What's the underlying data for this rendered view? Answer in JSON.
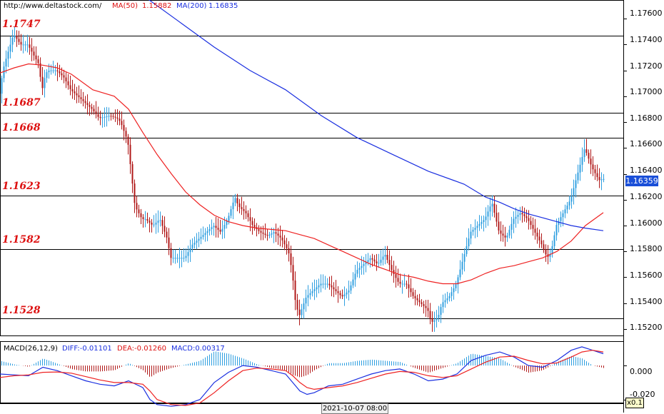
{
  "header": {
    "site": "http://www.deltastock.com/",
    "ma50_label": "MA(50)",
    "ma50_value": "1.15882",
    "ma200_label": "MA(200)",
    "ma200_value": "1.16835"
  },
  "colors": {
    "ma50": "#ee2222",
    "ma200": "#1a2fe0",
    "bull": "#2f9fe0",
    "bear": "#b01818",
    "level_text": "#dd1111"
  },
  "levels": [
    "1.1747",
    "1.1687",
    "1.1668",
    "1.1623",
    "1.1582",
    "1.1528"
  ],
  "yticks": [
    "1.17600",
    "1.17400",
    "1.17200",
    "1.17000",
    "1.16800",
    "1.16600",
    "1.16400",
    "1.16200",
    "1.16000",
    "1.15800",
    "1.15600",
    "1.15400",
    "1.15200"
  ],
  "current_price": "1.16359",
  "macd": {
    "label": "MACD(26,12,9)",
    "diff": "DIFF:-0.01101",
    "dea": "DEA:-0.01260",
    "macd": "MACD:0.00317",
    "ticks": [
      "0.000",
      "-0.020"
    ]
  },
  "time_label": "2021-10-07 08:00",
  "zoom": "x0.1",
  "chart_data": [
    {
      "type": "line",
      "title": "",
      "ylim": [
        1.1515,
        1.177
      ],
      "level_lines": [
        1.1747,
        1.1687,
        1.1668,
        1.1623,
        1.1582,
        1.1528
      ],
      "price_path": {
        "x": [
          0,
          5,
          10,
          20,
          30,
          40,
          55,
          60,
          65,
          70,
          80,
          90,
          100,
          110,
          120,
          130,
          140,
          155,
          165,
          170,
          180,
          185,
          190,
          195,
          200,
          205,
          215,
          225,
          235,
          240,
          250,
          260,
          270,
          280,
          290,
          300,
          310,
          320,
          330,
          335,
          345,
          355,
          365,
          375,
          385,
          395,
          405,
          410,
          415,
          420,
          430,
          440,
          450,
          460,
          470,
          480,
          490,
          500,
          510,
          520,
          530,
          540,
          550,
          560,
          570,
          580,
          590,
          600,
          605,
          610,
          615,
          620,
          630,
          640,
          650,
          660,
          670,
          680,
          690,
          700,
          710,
          720,
          730,
          740,
          750,
          760,
          765,
          770,
          775,
          780,
          790,
          800,
          805,
          810,
          815,
          820,
          830,
          840,
          845
        ],
        "y": [
          1.17,
          1.172,
          1.173,
          1.1748,
          1.174,
          1.174,
          1.1725,
          1.1705,
          1.1718,
          1.172,
          1.172,
          1.1715,
          1.1705,
          1.17,
          1.1695,
          1.169,
          1.1683,
          1.1685,
          1.1683,
          1.168,
          1.1665,
          1.164,
          1.1615,
          1.161,
          1.1605,
          1.1605,
          1.16,
          1.1605,
          1.159,
          1.1575,
          1.1575,
          1.1575,
          1.1585,
          1.159,
          1.1595,
          1.16,
          1.1595,
          1.1605,
          1.1622,
          1.1615,
          1.161,
          1.16,
          1.1595,
          1.1592,
          1.1595,
          1.159,
          1.158,
          1.1565,
          1.154,
          1.153,
          1.1545,
          1.155,
          1.1555,
          1.1555,
          1.155,
          1.1545,
          1.155,
          1.1565,
          1.157,
          1.1575,
          1.157,
          1.1578,
          1.1565,
          1.1555,
          1.1555,
          1.1545,
          1.154,
          1.1535,
          1.1525,
          1.1527,
          1.153,
          1.154,
          1.1545,
          1.1555,
          1.1575,
          1.1595,
          1.16,
          1.1605,
          1.1618,
          1.1595,
          1.159,
          1.1605,
          1.161,
          1.1605,
          1.1595,
          1.1585,
          1.1578,
          1.1575,
          1.1585,
          1.16,
          1.161,
          1.162,
          1.163,
          1.164,
          1.165,
          1.166,
          1.1645,
          1.1635,
          1.1636
        ]
      },
      "series": [
        {
          "name": "MA(50)",
          "x": [
            0,
            20,
            40,
            60,
            80,
            100,
            130,
            160,
            180,
            200,
            220,
            240,
            260,
            280,
            300,
            320,
            340,
            360,
            380,
            400,
            420,
            440,
            460,
            480,
            500,
            520,
            540,
            560,
            580,
            600,
            620,
            640,
            660,
            680,
            700,
            720,
            740,
            760,
            780,
            800,
            820,
            845
          ],
          "y": [
            1.1718,
            1.1722,
            1.1725,
            1.1724,
            1.1722,
            1.1717,
            1.1705,
            1.17,
            1.169,
            1.1672,
            1.1655,
            1.164,
            1.1626,
            1.1616,
            1.1608,
            1.1603,
            1.16,
            1.1598,
            1.1597,
            1.1596,
            1.1593,
            1.159,
            1.1585,
            1.158,
            1.1575,
            1.157,
            1.1566,
            1.1562,
            1.156,
            1.1557,
            1.1555,
            1.1555,
            1.1558,
            1.1563,
            1.1567,
            1.1569,
            1.1572,
            1.1575,
            1.158,
            1.1588,
            1.16,
            1.161
          ]
        },
        {
          "name": "MA(200)",
          "x": [
            200,
            250,
            300,
            350,
            400,
            450,
            500,
            550,
            600,
            650,
            680,
            700,
            720,
            740,
            760,
            780,
            800,
            820,
            845
          ],
          "y": [
            1.1778,
            1.1758,
            1.1738,
            1.172,
            1.1705,
            1.1685,
            1.1668,
            1.1655,
            1.1642,
            1.1632,
            1.1622,
            1.1618,
            1.1613,
            1.1609,
            1.1606,
            1.1603,
            1.16,
            1.1598,
            1.1596
          ]
        }
      ]
    },
    {
      "type": "line",
      "title": "MACD(26,12,9)",
      "ylim": [
        -0.0235,
        0.0135
      ],
      "series": [
        {
          "name": "DIFF",
          "x": [
            0,
            20,
            40,
            60,
            80,
            100,
            120,
            140,
            160,
            180,
            200,
            210,
            220,
            240,
            260,
            280,
            300,
            320,
            340,
            360,
            380,
            400,
            410,
            420,
            430,
            440,
            460,
            480,
            500,
            520,
            540,
            560,
            580,
            600,
            620,
            640,
            660,
            680,
            700,
            720,
            740,
            760,
            780,
            800,
            815,
            830,
            845
          ],
          "y": [
            -0.005,
            -0.0055,
            -0.006,
            -0.001,
            -0.003,
            -0.006,
            -0.009,
            -0.011,
            -0.012,
            -0.009,
            -0.013,
            -0.02,
            -0.023,
            -0.024,
            -0.023,
            -0.02,
            -0.01,
            -0.004,
            0.0,
            -0.001,
            -0.003,
            -0.005,
            -0.01,
            -0.015,
            -0.017,
            -0.016,
            -0.012,
            -0.011,
            -0.008,
            -0.005,
            -0.003,
            -0.002,
            -0.005,
            -0.009,
            -0.008,
            -0.005,
            0.003,
            0.006,
            0.008,
            0.005,
            0.0,
            -0.001,
            0.003,
            0.009,
            0.011,
            0.009,
            0.007
          ]
        },
        {
          "name": "DEA",
          "x": [
            0,
            20,
            40,
            60,
            80,
            100,
            120,
            140,
            160,
            180,
            200,
            210,
            220,
            240,
            260,
            280,
            300,
            320,
            340,
            360,
            380,
            400,
            410,
            420,
            430,
            440,
            460,
            480,
            500,
            520,
            540,
            560,
            580,
            600,
            620,
            640,
            660,
            680,
            700,
            720,
            740,
            760,
            780,
            800,
            815,
            830,
            845
          ],
          "y": [
            -0.007,
            -0.006,
            -0.0055,
            -0.004,
            -0.0038,
            -0.0045,
            -0.0065,
            -0.0085,
            -0.01,
            -0.01,
            -0.011,
            -0.015,
            -0.02,
            -0.023,
            -0.0235,
            -0.022,
            -0.016,
            -0.009,
            -0.003,
            -0.0015,
            -0.002,
            -0.003,
            -0.006,
            -0.01,
            -0.013,
            -0.014,
            -0.013,
            -0.012,
            -0.01,
            -0.0075,
            -0.005,
            -0.0035,
            -0.004,
            -0.006,
            -0.007,
            -0.006,
            -0.002,
            0.002,
            0.005,
            0.0055,
            0.003,
            0.001,
            0.0015,
            0.005,
            0.008,
            0.009,
            0.008
          ]
        }
      ]
    }
  ]
}
